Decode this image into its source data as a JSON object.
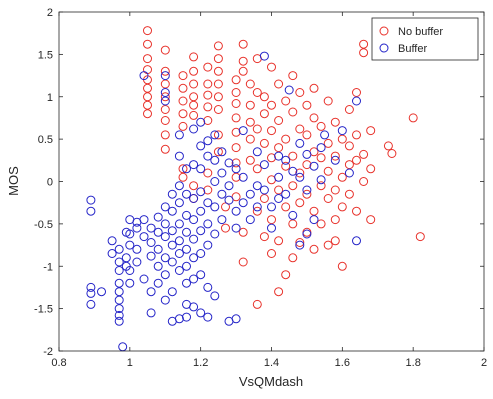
{
  "chart_data": {
    "type": "scatter",
    "title": "",
    "xlabel": "VsQMdash",
    "ylabel": "MOS",
    "xlim": [
      0.8,
      2
    ],
    "ylim": [
      -2,
      2
    ],
    "xticks": [
      "0.8",
      "1",
      "1.2",
      "1.4",
      "1.6",
      "1.8",
      "2"
    ],
    "yticks": [
      "-2",
      "-1.5",
      "-1",
      "-0.5",
      "0",
      "0.5",
      "1",
      "1.5",
      "2"
    ],
    "grid": false,
    "legend_position": "top-right",
    "marker": "open-circle",
    "series": [
      {
        "name": "No buffer",
        "color": "#e8322b",
        "points": [
          [
            1.05,
            1.78
          ],
          [
            1.05,
            1.62
          ],
          [
            1.05,
            1.45
          ],
          [
            1.05,
            1.32
          ],
          [
            1.05,
            1.2
          ],
          [
            1.05,
            1.1
          ],
          [
            1.05,
            1.0
          ],
          [
            1.05,
            0.9
          ],
          [
            1.05,
            0.8
          ],
          [
            1.1,
            1.55
          ],
          [
            1.1,
            1.3
          ],
          [
            1.1,
            1.15
          ],
          [
            1.1,
            1.0
          ],
          [
            1.1,
            0.85
          ],
          [
            1.1,
            0.72
          ],
          [
            1.1,
            0.55
          ],
          [
            1.1,
            0.38
          ],
          [
            1.15,
            1.25
          ],
          [
            1.15,
            1.1
          ],
          [
            1.15,
            0.95
          ],
          [
            1.15,
            0.8
          ],
          [
            1.15,
            0.65
          ],
          [
            1.15,
            0.15
          ],
          [
            1.15,
            0.05
          ],
          [
            1.18,
            1.47
          ],
          [
            1.18,
            1.3
          ],
          [
            1.18,
            1.15
          ],
          [
            1.18,
            1.0
          ],
          [
            1.18,
            0.9
          ],
          [
            1.18,
            0.78
          ],
          [
            1.18,
            -0.05
          ],
          [
            1.18,
            -0.2
          ],
          [
            1.22,
            1.35
          ],
          [
            1.22,
            1.15
          ],
          [
            1.22,
            1.02
          ],
          [
            1.22,
            0.88
          ],
          [
            1.22,
            0.72
          ],
          [
            1.22,
            0.1
          ],
          [
            1.22,
            -0.1
          ],
          [
            1.25,
            1.6
          ],
          [
            1.25,
            1.45
          ],
          [
            1.25,
            1.3
          ],
          [
            1.25,
            1.15
          ],
          [
            1.25,
            1.0
          ],
          [
            1.25,
            0.85
          ],
          [
            1.25,
            0.55
          ],
          [
            1.25,
            0.35
          ],
          [
            1.27,
            -0.3
          ],
          [
            1.27,
            -0.55
          ],
          [
            1.3,
            1.2
          ],
          [
            1.3,
            1.05
          ],
          [
            1.3,
            0.92
          ],
          [
            1.3,
            0.75
          ],
          [
            1.3,
            0.58
          ],
          [
            1.3,
            0.4
          ],
          [
            1.3,
            0.22
          ],
          [
            1.3,
            0.05
          ],
          [
            1.3,
            -0.18
          ],
          [
            1.32,
            1.62
          ],
          [
            1.32,
            1.42
          ],
          [
            1.32,
            1.3
          ],
          [
            1.32,
            -0.6
          ],
          [
            1.32,
            -0.95
          ],
          [
            1.34,
            1.15
          ],
          [
            1.34,
            0.9
          ],
          [
            1.34,
            0.7
          ],
          [
            1.34,
            0.5
          ],
          [
            1.34,
            0.25
          ],
          [
            1.36,
            1.45
          ],
          [
            1.36,
            1.05
          ],
          [
            1.36,
            0.62
          ],
          [
            1.36,
            0.15
          ],
          [
            1.36,
            -0.35
          ],
          [
            1.36,
            -1.45
          ],
          [
            1.38,
            1.0
          ],
          [
            1.38,
            0.8
          ],
          [
            1.38,
            0.45
          ],
          [
            1.38,
            -0.2
          ],
          [
            1.38,
            -0.65
          ],
          [
            1.4,
            1.35
          ],
          [
            1.4,
            0.9
          ],
          [
            1.4,
            0.6
          ],
          [
            1.4,
            0.28
          ],
          [
            1.4,
            0.02
          ],
          [
            1.4,
            -0.45
          ],
          [
            1.4,
            -0.85
          ],
          [
            1.42,
            1.15
          ],
          [
            1.42,
            0.72
          ],
          [
            1.42,
            0.4
          ],
          [
            1.42,
            -0.1
          ],
          [
            1.42,
            -0.7
          ],
          [
            1.42,
            -1.3
          ],
          [
            1.44,
            0.95
          ],
          [
            1.44,
            0.5
          ],
          [
            1.44,
            0.18
          ],
          [
            1.44,
            -0.3
          ],
          [
            1.44,
            -1.1
          ],
          [
            1.46,
            1.25
          ],
          [
            1.46,
            0.82
          ],
          [
            1.46,
            0.3
          ],
          [
            1.46,
            -0.05
          ],
          [
            1.46,
            -0.5
          ],
          [
            1.46,
            -0.9
          ],
          [
            1.48,
            1.05
          ],
          [
            1.48,
            0.62
          ],
          [
            1.48,
            0.1
          ],
          [
            1.48,
            -0.25
          ],
          [
            1.48,
            -0.72
          ],
          [
            1.5,
            0.9
          ],
          [
            1.5,
            0.55
          ],
          [
            1.5,
            0.2
          ],
          [
            1.5,
            -0.15
          ],
          [
            1.5,
            -0.6
          ],
          [
            1.52,
            1.1
          ],
          [
            1.52,
            0.75
          ],
          [
            1.52,
            0.35
          ],
          [
            1.52,
            -0.35
          ],
          [
            1.52,
            -0.8
          ],
          [
            1.54,
            0.65
          ],
          [
            1.54,
            0.28
          ],
          [
            1.54,
            -0.05
          ],
          [
            1.54,
            -0.5
          ],
          [
            1.56,
            0.95
          ],
          [
            1.56,
            0.45
          ],
          [
            1.56,
            0.12
          ],
          [
            1.56,
            -0.2
          ],
          [
            1.56,
            -0.75
          ],
          [
            1.58,
            0.7
          ],
          [
            1.58,
            0.3
          ],
          [
            1.58,
            -0.1
          ],
          [
            1.58,
            -0.45
          ],
          [
            1.58,
            -0.7
          ],
          [
            1.6,
            0.5
          ],
          [
            1.6,
            0.05
          ],
          [
            1.6,
            -0.3
          ],
          [
            1.6,
            -1.0
          ],
          [
            1.62,
            0.85
          ],
          [
            1.62,
            0.42
          ],
          [
            1.62,
            0.2
          ],
          [
            1.62,
            -0.15
          ],
          [
            1.64,
            1.05
          ],
          [
            1.64,
            0.55
          ],
          [
            1.64,
            0.25
          ],
          [
            1.64,
            -0.35
          ],
          [
            1.66,
            1.62
          ],
          [
            1.66,
            1.52
          ],
          [
            1.66,
            0.32
          ],
          [
            1.66,
            0.0
          ],
          [
            1.68,
            0.6
          ],
          [
            1.68,
            0.15
          ],
          [
            1.68,
            -0.45
          ],
          [
            1.73,
            0.42
          ],
          [
            1.74,
            0.33
          ],
          [
            1.8,
            0.75
          ],
          [
            1.82,
            -0.65
          ]
        ]
      },
      {
        "name": "Buffer",
        "color": "#2424c8",
        "points": [
          [
            0.89,
            -0.22
          ],
          [
            0.89,
            -0.35
          ],
          [
            0.89,
            -1.25
          ],
          [
            0.89,
            -1.32
          ],
          [
            0.89,
            -1.45
          ],
          [
            0.92,
            -1.3
          ],
          [
            0.95,
            -0.7
          ],
          [
            0.95,
            -0.85
          ],
          [
            0.97,
            -0.8
          ],
          [
            0.97,
            -0.95
          ],
          [
            0.97,
            -1.05
          ],
          [
            0.97,
            -1.2
          ],
          [
            0.97,
            -1.3
          ],
          [
            0.97,
            -1.4
          ],
          [
            0.97,
            -1.5
          ],
          [
            0.97,
            -1.58
          ],
          [
            0.97,
            -1.65
          ],
          [
            0.98,
            -1.95
          ],
          [
            0.99,
            -0.6
          ],
          [
            0.99,
            -0.9
          ],
          [
            0.99,
            -1.0
          ],
          [
            1.0,
            -0.45
          ],
          [
            1.0,
            -0.62
          ],
          [
            1.0,
            -0.75
          ],
          [
            1.0,
            -1.05
          ],
          [
            1.0,
            -1.2
          ],
          [
            1.02,
            -0.48
          ],
          [
            1.02,
            -0.55
          ],
          [
            1.02,
            -0.8
          ],
          [
            1.02,
            -0.95
          ],
          [
            1.04,
            -0.45
          ],
          [
            1.04,
            -0.65
          ],
          [
            1.04,
            -1.15
          ],
          [
            1.04,
            1.25
          ],
          [
            1.06,
            -0.55
          ],
          [
            1.06,
            -0.72
          ],
          [
            1.06,
            -0.88
          ],
          [
            1.06,
            -1.3
          ],
          [
            1.06,
            -1.55
          ],
          [
            1.08,
            -0.42
          ],
          [
            1.08,
            -0.6
          ],
          [
            1.08,
            -0.8
          ],
          [
            1.08,
            -1.0
          ],
          [
            1.08,
            -1.2
          ],
          [
            1.1,
            1.25
          ],
          [
            1.1,
            1.05
          ],
          [
            1.1,
            0.95
          ],
          [
            1.1,
            -0.3
          ],
          [
            1.1,
            -0.5
          ],
          [
            1.1,
            -0.65
          ],
          [
            1.1,
            -0.9
          ],
          [
            1.1,
            -1.1
          ],
          [
            1.1,
            -1.4
          ],
          [
            1.12,
            -0.15
          ],
          [
            1.12,
            -0.35
          ],
          [
            1.12,
            -0.58
          ],
          [
            1.12,
            -0.75
          ],
          [
            1.12,
            -0.95
          ],
          [
            1.12,
            -1.3
          ],
          [
            1.12,
            -1.65
          ],
          [
            1.14,
            0.55
          ],
          [
            1.14,
            0.3
          ],
          [
            1.14,
            -0.05
          ],
          [
            1.14,
            -0.25
          ],
          [
            1.14,
            -0.5
          ],
          [
            1.14,
            -0.7
          ],
          [
            1.14,
            -0.85
          ],
          [
            1.14,
            -1.05
          ],
          [
            1.14,
            -1.62
          ],
          [
            1.16,
            0.15
          ],
          [
            1.16,
            -0.15
          ],
          [
            1.16,
            -0.4
          ],
          [
            1.16,
            -0.6
          ],
          [
            1.16,
            -0.8
          ],
          [
            1.16,
            -1.0
          ],
          [
            1.16,
            -1.2
          ],
          [
            1.16,
            -1.45
          ],
          [
            1.16,
            -1.6
          ],
          [
            1.18,
            0.62
          ],
          [
            1.18,
            0.2
          ],
          [
            1.18,
            -0.2
          ],
          [
            1.18,
            -0.45
          ],
          [
            1.18,
            -0.68
          ],
          [
            1.18,
            -0.9
          ],
          [
            1.18,
            -1.15
          ],
          [
            1.18,
            -1.48
          ],
          [
            1.2,
            0.7
          ],
          [
            1.2,
            0.42
          ],
          [
            1.2,
            0.15
          ],
          [
            1.2,
            -0.12
          ],
          [
            1.2,
            -0.35
          ],
          [
            1.2,
            -0.58
          ],
          [
            1.2,
            -0.85
          ],
          [
            1.2,
            -1.1
          ],
          [
            1.2,
            -1.55
          ],
          [
            1.22,
            0.48
          ],
          [
            1.22,
            0.3
          ],
          [
            1.22,
            -0.25
          ],
          [
            1.22,
            -0.5
          ],
          [
            1.22,
            -0.75
          ],
          [
            1.22,
            -1.25
          ],
          [
            1.22,
            -1.6
          ],
          [
            1.24,
            0.55
          ],
          [
            1.24,
            0.25
          ],
          [
            1.24,
            0.0
          ],
          [
            1.24,
            -0.3
          ],
          [
            1.24,
            -0.62
          ],
          [
            1.24,
            -1.35
          ],
          [
            1.26,
            0.35
          ],
          [
            1.26,
            0.1
          ],
          [
            1.26,
            -0.15
          ],
          [
            1.26,
            -0.45
          ],
          [
            1.28,
            0.22
          ],
          [
            1.28,
            -0.05
          ],
          [
            1.28,
            -0.22
          ],
          [
            1.28,
            -1.65
          ],
          [
            1.3,
            0.15
          ],
          [
            1.3,
            -0.35
          ],
          [
            1.3,
            -0.55
          ],
          [
            1.3,
            -1.62
          ],
          [
            1.32,
            0.6
          ],
          [
            1.32,
            0.05
          ],
          [
            1.32,
            -0.25
          ],
          [
            1.34,
            -0.15
          ],
          [
            1.34,
            -0.45
          ],
          [
            1.36,
            0.35
          ],
          [
            1.36,
            -0.05
          ],
          [
            1.36,
            -0.3
          ],
          [
            1.38,
            0.2
          ],
          [
            1.38,
            -0.1
          ],
          [
            1.38,
            1.48
          ],
          [
            1.4,
            -0.3
          ],
          [
            1.4,
            -0.55
          ],
          [
            1.42,
            0.3
          ],
          [
            1.42,
            0.05
          ],
          [
            1.42,
            -0.2
          ],
          [
            1.44,
            0.25
          ],
          [
            1.44,
            -0.15
          ],
          [
            1.45,
            1.08
          ],
          [
            1.46,
            0.12
          ],
          [
            1.46,
            -0.4
          ],
          [
            1.48,
            0.45
          ],
          [
            1.48,
            0.05
          ],
          [
            1.48,
            -0.75
          ],
          [
            1.5,
            0.32
          ],
          [
            1.5,
            -0.1
          ],
          [
            1.5,
            -0.62
          ],
          [
            1.52,
            0.18
          ],
          [
            1.52,
            -0.45
          ],
          [
            1.54,
            0.4
          ],
          [
            1.54,
            0.02
          ],
          [
            1.55,
            0.55
          ],
          [
            1.58,
            0.25
          ],
          [
            1.6,
            0.6
          ],
          [
            1.62,
            0.1
          ],
          [
            1.64,
            0.95
          ],
          [
            1.64,
            -0.7
          ]
        ]
      }
    ]
  }
}
